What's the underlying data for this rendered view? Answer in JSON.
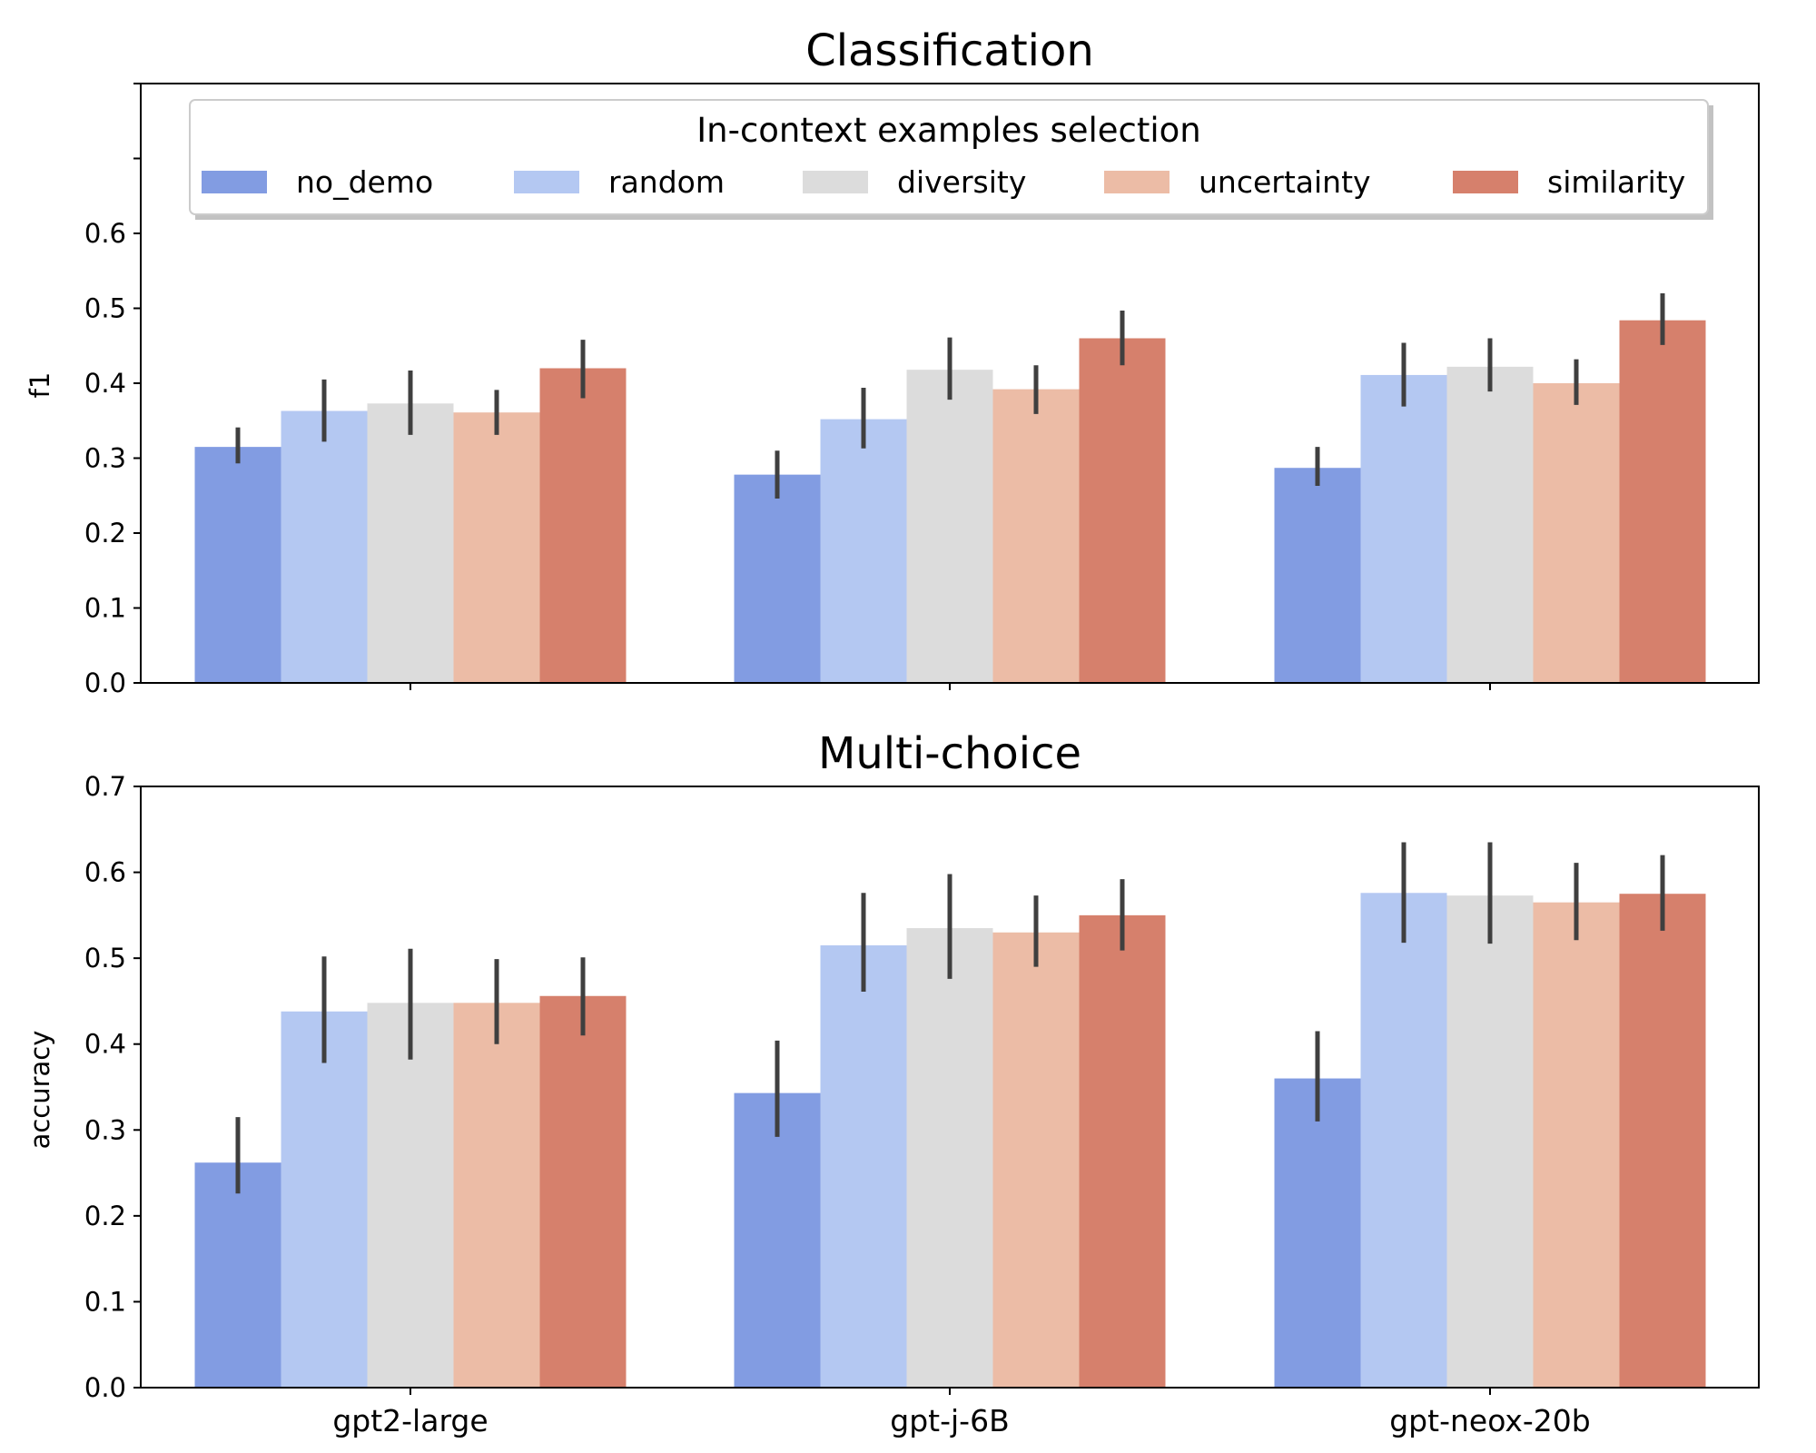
{
  "legend": {
    "title": "In-context examples selection",
    "entries": [
      "no_demo",
      "random",
      "diversity",
      "uncertainty",
      "similarity"
    ]
  },
  "series_colors": {
    "no_demo": "#829ce2",
    "random": "#b4c8f2",
    "diversity": "#dcdcdc",
    "uncertainty": "#ecbca6",
    "similarity": "#d6806c"
  },
  "chart_data": [
    {
      "type": "bar",
      "title": "Classification",
      "xlabel": "",
      "ylabel": "f1",
      "ylim": [
        0,
        0.8
      ],
      "yticks": [
        "0.0",
        "0.1",
        "0.2",
        "0.3",
        "0.4",
        "0.5",
        "0.6"
      ],
      "categories": [
        "gpt2-large",
        "gpt-j-6B",
        "gpt-neox-20b"
      ],
      "show_category_labels": false,
      "series": [
        {
          "name": "no_demo",
          "values": [
            0.315,
            0.278,
            0.287
          ],
          "err_low": [
            0.293,
            0.246,
            0.263
          ],
          "err_high": [
            0.341,
            0.31,
            0.315
          ]
        },
        {
          "name": "random",
          "values": [
            0.363,
            0.352,
            0.411
          ],
          "err_low": [
            0.322,
            0.313,
            0.369
          ],
          "err_high": [
            0.405,
            0.394,
            0.454
          ]
        },
        {
          "name": "diversity",
          "values": [
            0.373,
            0.418,
            0.422
          ],
          "err_low": [
            0.331,
            0.378,
            0.389
          ],
          "err_high": [
            0.417,
            0.461,
            0.46
          ]
        },
        {
          "name": "uncertainty",
          "values": [
            0.361,
            0.392,
            0.4
          ],
          "err_low": [
            0.331,
            0.359,
            0.371
          ],
          "err_high": [
            0.391,
            0.424,
            0.432
          ]
        },
        {
          "name": "similarity",
          "values": [
            0.42,
            0.46,
            0.484
          ],
          "err_low": [
            0.38,
            0.424,
            0.451
          ],
          "err_high": [
            0.458,
            0.497,
            0.52
          ]
        }
      ]
    },
    {
      "type": "bar",
      "title": "Multi-choice",
      "xlabel": "",
      "ylabel": "accuracy",
      "ylim": [
        0,
        0.7
      ],
      "yticks": [
        "0.0",
        "0.1",
        "0.2",
        "0.3",
        "0.4",
        "0.5",
        "0.6",
        "0.7"
      ],
      "categories": [
        "gpt2-large",
        "gpt-j-6B",
        "gpt-neox-20b"
      ],
      "show_category_labels": true,
      "series": [
        {
          "name": "no_demo",
          "values": [
            0.262,
            0.343,
            0.36
          ],
          "err_low": [
            0.226,
            0.292,
            0.31
          ],
          "err_high": [
            0.315,
            0.404,
            0.415
          ]
        },
        {
          "name": "random",
          "values": [
            0.438,
            0.515,
            0.576
          ],
          "err_low": [
            0.378,
            0.461,
            0.518
          ],
          "err_high": [
            0.502,
            0.576,
            0.635
          ]
        },
        {
          "name": "diversity",
          "values": [
            0.448,
            0.535,
            0.573
          ],
          "err_low": [
            0.382,
            0.476,
            0.517
          ],
          "err_high": [
            0.511,
            0.598,
            0.635
          ]
        },
        {
          "name": "uncertainty",
          "values": [
            0.448,
            0.53,
            0.565
          ],
          "err_low": [
            0.4,
            0.49,
            0.521
          ],
          "err_high": [
            0.499,
            0.573,
            0.611
          ]
        },
        {
          "name": "similarity",
          "values": [
            0.456,
            0.55,
            0.575
          ],
          "err_low": [
            0.41,
            0.509,
            0.532
          ],
          "err_high": [
            0.501,
            0.592,
            0.62
          ]
        }
      ]
    }
  ]
}
